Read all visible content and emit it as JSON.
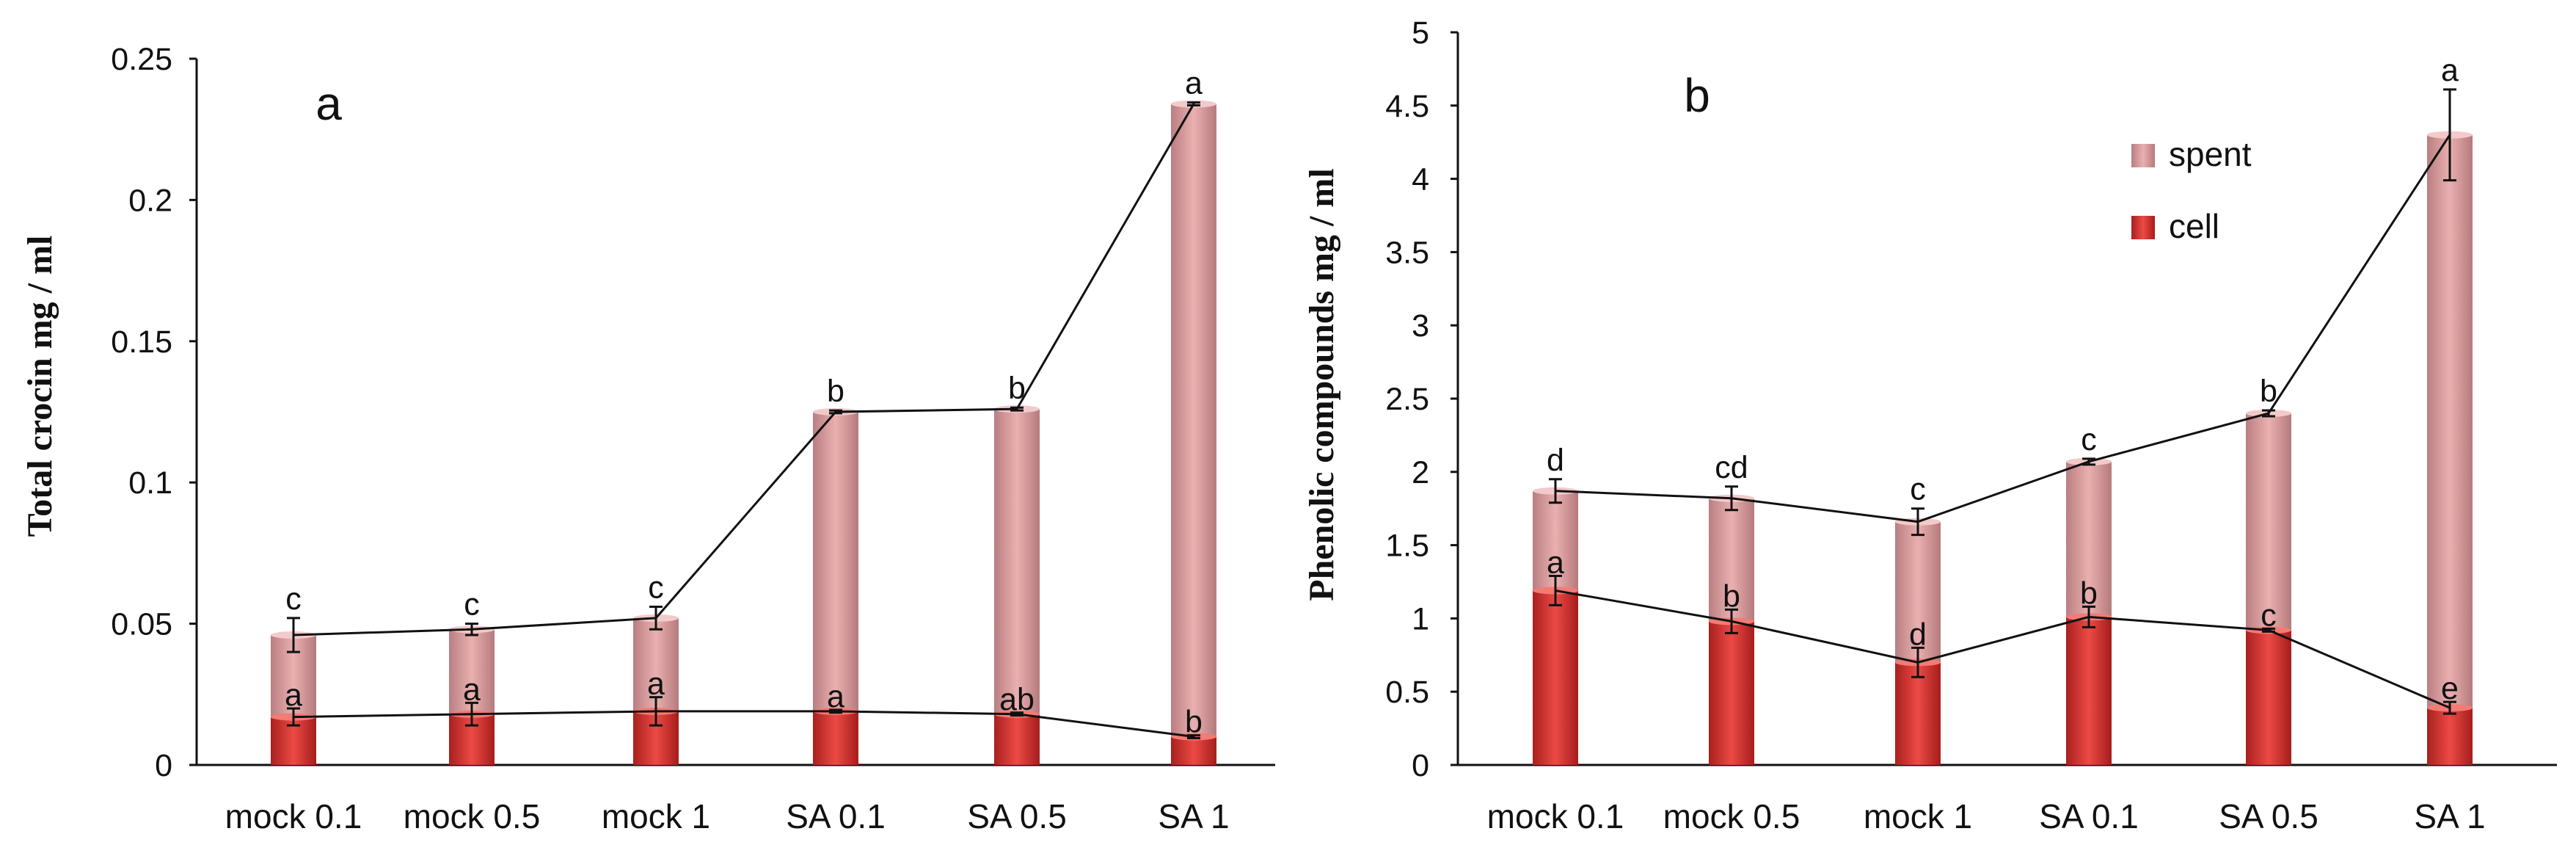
{
  "colors": {
    "spent": "#e5a4a4",
    "spent_dark": "#b77e80",
    "cell": "#e0302c",
    "cell_dark": "#a8201e",
    "axis": "#111111"
  },
  "chart_data": [
    {
      "type": "bar",
      "stacked": true,
      "panel_label": "a",
      "ylabel": "Total crocin mg / ml",
      "xlabel": "",
      "ylim": [
        0,
        0.25
      ],
      "yticks": [
        "0",
        "0.05",
        "0.1",
        "0.15",
        "0.2",
        "0.25"
      ],
      "ytick_values": [
        0,
        0.05,
        0.1,
        0.15,
        0.2,
        0.25
      ],
      "categories": [
        "mock 0.1",
        "mock 0.5",
        "mock 1",
        "SA 0.1",
        "SA 0.5",
        "SA 1"
      ],
      "series": [
        {
          "name": "cell",
          "values": [
            0.017,
            0.018,
            0.019,
            0.019,
            0.018,
            0.01
          ],
          "errors": [
            0.003,
            0.004,
            0.005,
            0.0005,
            0.0005,
            0.0005
          ],
          "letters": [
            "a",
            "a",
            "a",
            "a",
            "ab",
            "b"
          ]
        },
        {
          "name": "spent",
          "totals": [
            0.046,
            0.048,
            0.052,
            0.125,
            0.126,
            0.234
          ],
          "errors": [
            0.006,
            0.002,
            0.004,
            0.0005,
            0.0005,
            0.0005
          ],
          "letters": [
            "c",
            "c",
            "c",
            "b",
            "b",
            "a"
          ]
        }
      ],
      "legend": []
    },
    {
      "type": "bar",
      "stacked": true,
      "panel_label": "b",
      "ylabel": "Phenolic compounds mg / ml",
      "xlabel": "",
      "ylim": [
        0,
        5
      ],
      "yticks": [
        "0",
        "0.5",
        "1",
        "1.5",
        "2",
        "2.5",
        "3",
        "3.5",
        "4",
        "4.5",
        "5"
      ],
      "ytick_values": [
        0,
        0.5,
        1,
        1.5,
        2,
        2.5,
        3,
        3.5,
        4,
        4.5,
        5
      ],
      "categories": [
        "mock 0.1",
        "mock 0.5",
        "mock 1",
        "SA 0.1",
        "SA 0.5",
        "SA 1"
      ],
      "series": [
        {
          "name": "cell",
          "values": [
            1.19,
            0.98,
            0.7,
            1.01,
            0.92,
            0.39
          ],
          "errors": [
            0.1,
            0.08,
            0.1,
            0.07,
            0.01,
            0.04
          ],
          "letters": [
            "a",
            "b",
            "d",
            "b",
            "c",
            "e"
          ]
        },
        {
          "name": "spent",
          "totals": [
            1.87,
            1.82,
            1.66,
            2.07,
            2.4,
            4.3
          ],
          "errors": [
            0.08,
            0.08,
            0.09,
            0.02,
            0.02,
            0.31
          ],
          "letters": [
            "d",
            "cd",
            "c",
            "c",
            "b",
            "a"
          ]
        }
      ],
      "legend": [
        "spent",
        "cell"
      ]
    }
  ]
}
